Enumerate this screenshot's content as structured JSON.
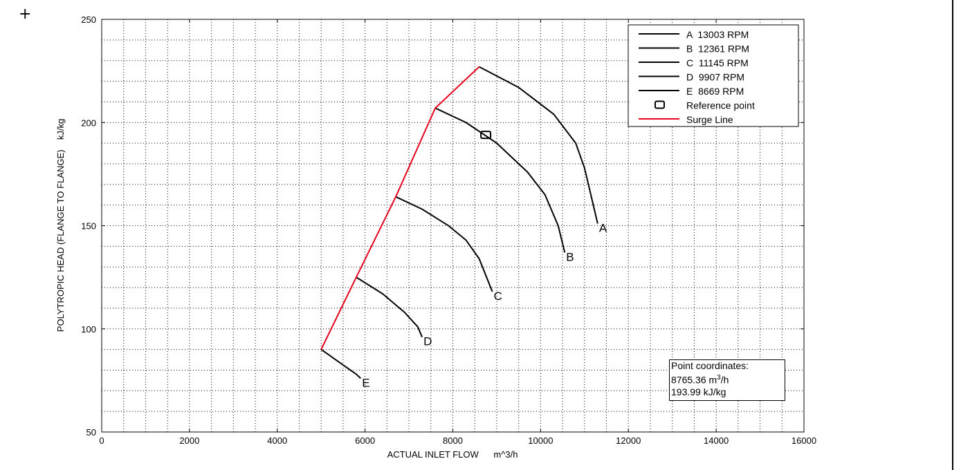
{
  "page": {
    "cursor_icon": "crosshair-icon",
    "coordinates_box": {
      "title": "Point coordinates:",
      "flow_value": "8765.36",
      "flow_unit_base": "m",
      "flow_unit_sup": "3",
      "flow_unit_suffix": "/h",
      "head_line": "193.99 kJ/kg"
    }
  },
  "chart_data": {
    "type": "line",
    "xlabel": "ACTUAL INLET FLOW      m^3/h",
    "ylabel": "POLYTROPIC HEAD (FLANGE TO FLANGE)    kJ/kg",
    "xlim": [
      0,
      16000
    ],
    "ylim": [
      50,
      250
    ],
    "xticks": [
      "0",
      "2000",
      "4000",
      "6000",
      "8000",
      "10000",
      "12000",
      "14000",
      "16000"
    ],
    "yticks": [
      "50",
      "100",
      "150",
      "200",
      "250"
    ],
    "grid": true,
    "legend_position": "top-right",
    "colors": {
      "curves": "#000000",
      "surge": "#e8001c",
      "grid": "#000000"
    },
    "series": [
      {
        "name": "A  13003 RPM",
        "label": "A",
        "x": [
          8600,
          9500,
          10300,
          10800,
          11000,
          11300
        ],
        "y": [
          227,
          217,
          204,
          190,
          178,
          151
        ]
      },
      {
        "name": "B  12361 RPM",
        "label": "B",
        "x": [
          7600,
          8300,
          9000,
          9700,
          10100,
          10400,
          10550
        ],
        "y": [
          207,
          200,
          190,
          176,
          165,
          150,
          137
        ]
      },
      {
        "name": "C  11145 RPM",
        "label": "C",
        "x": [
          6700,
          7300,
          7900,
          8300,
          8600,
          8900
        ],
        "y": [
          164,
          158,
          150,
          143,
          134,
          118
        ]
      },
      {
        "name": "D  9907 RPM",
        "label": "D",
        "x": [
          5800,
          6400,
          6900,
          7200,
          7300
        ],
        "y": [
          125,
          117,
          108,
          101,
          96
        ]
      },
      {
        "name": "E  8669 RPM",
        "label": "E",
        "x": [
          5000,
          5400,
          5800,
          5900
        ],
        "y": [
          90,
          84,
          78,
          76
        ]
      },
      {
        "name": "Surge Line",
        "label": "",
        "x": [
          5000,
          5800,
          6700,
          7600,
          8600
        ],
        "y": [
          90,
          125,
          164,
          207,
          227
        ]
      }
    ],
    "reference_point": {
      "name": "Reference point",
      "x": 8750,
      "y": 194
    }
  }
}
